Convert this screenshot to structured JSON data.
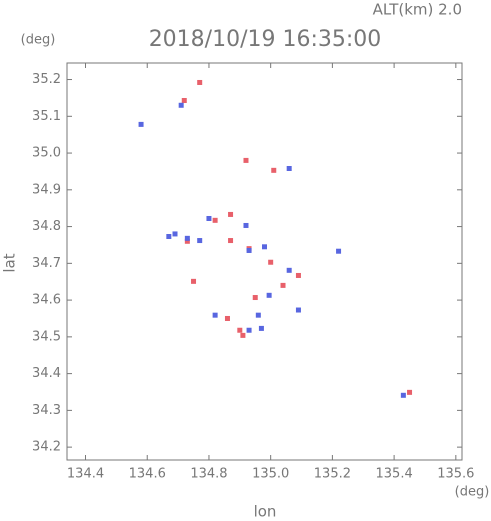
{
  "chart_data": {
    "type": "scatter",
    "title": "2018/10/19 16:35:00",
    "subtitle": "ALT(km) 2.0",
    "x_label": "lon",
    "y_label": "lat",
    "x_unit": "(deg)",
    "y_unit": "(deg)",
    "xlim": [
      134.34,
      135.62
    ],
    "ylim": [
      34.165,
      35.245
    ],
    "xticks": [
      134.4,
      134.6,
      134.8,
      {
        "value": 135,
        "label": "135.0"
      },
      135.2,
      135.4,
      135.6
    ],
    "yticks": [
      {
        "value": 34.2,
        "label": "34.2"
      },
      34.3,
      34.4,
      34.5,
      34.6,
      34.7,
      34.8,
      34.9,
      {
        "value": 35,
        "label": "35.0"
      },
      35.1,
      35.2
    ],
    "series": [
      {
        "color": "#e8606a",
        "x": [
          134.77,
          134.72,
          134.92,
          135.01,
          134.87,
          134.82,
          134.87,
          134.93,
          135.0,
          135.09,
          135.04,
          134.95,
          134.75,
          134.86,
          134.91,
          134.9,
          135.45,
          134.73
        ],
        "values": [
          35.192,
          35.143,
          34.98,
          34.953,
          34.833,
          34.817,
          34.762,
          34.74,
          34.703,
          34.667,
          34.64,
          34.607,
          34.651,
          34.55,
          34.504,
          34.518,
          34.349,
          34.76
        ]
      },
      {
        "color": "#5866e0",
        "x": [
          134.71,
          134.58,
          135.06,
          134.8,
          134.67,
          134.73,
          134.77,
          134.93,
          134.98,
          134.92,
          135.06,
          134.995,
          135.22,
          134.82,
          134.96,
          134.93,
          134.97,
          135.43,
          135.09,
          134.69
        ],
        "values": [
          35.13,
          35.078,
          34.958,
          34.822,
          34.773,
          34.768,
          34.762,
          34.735,
          34.745,
          34.803,
          34.681,
          34.613,
          34.733,
          34.559,
          34.559,
          34.518,
          34.523,
          34.341,
          34.573,
          34.78
        ]
      }
    ]
  }
}
